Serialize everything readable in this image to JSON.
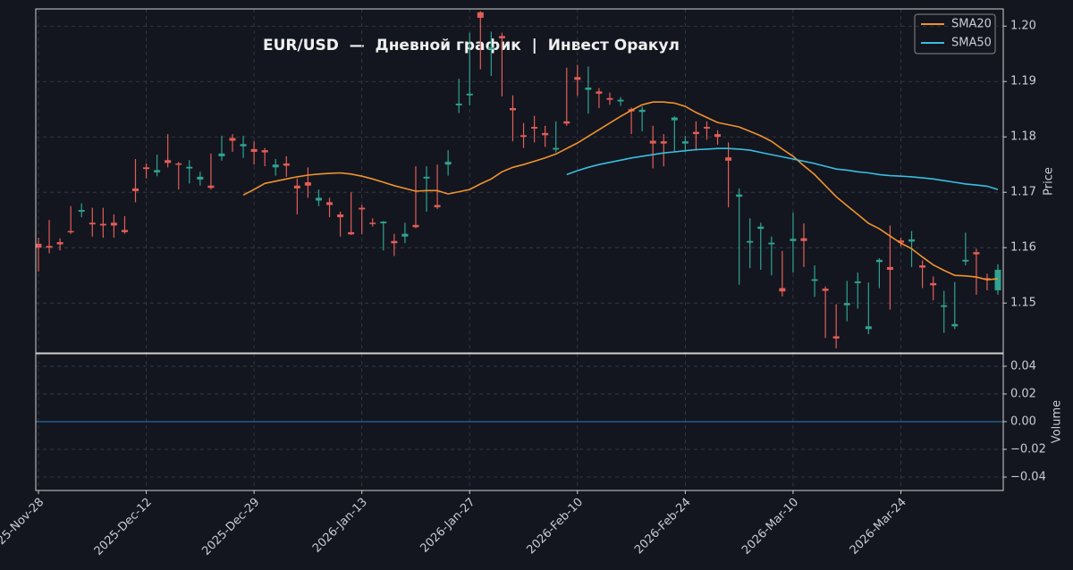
{
  "chart_data": [
    {
      "type": "candlestick",
      "title": "EUR/USD  —  Дневной график  |  Инвест Оракул",
      "y_label": "Price",
      "up_color": "#2fa391",
      "down_color": "#e35d57",
      "grid": true,
      "legend": "upper right",
      "ylim": [
        1.141,
        1.2031
      ],
      "yticks": [
        1.15,
        1.16,
        1.17,
        1.18,
        1.19,
        {
          "value": 1.2,
          "label": "1.20"
        }
      ],
      "categories": [
        "2025-Nov-28",
        null,
        null,
        null,
        null,
        null,
        null,
        null,
        null,
        null,
        "2025-Dec-12",
        null,
        null,
        null,
        null,
        null,
        null,
        null,
        null,
        null,
        "2025-Dec-29",
        null,
        null,
        null,
        null,
        null,
        null,
        null,
        null,
        null,
        "2026-Jan-13",
        null,
        null,
        null,
        null,
        null,
        null,
        null,
        null,
        null,
        "2026-Jan-27",
        null,
        null,
        null,
        null,
        null,
        null,
        null,
        null,
        null,
        "2026-Feb-10",
        null,
        null,
        null,
        null,
        null,
        null,
        null,
        null,
        null,
        "2026-Feb-24",
        null,
        null,
        null,
        null,
        null,
        null,
        null,
        null,
        null,
        "2026-Mar-10",
        null,
        null,
        null,
        null,
        null,
        null,
        null,
        null,
        null,
        "2026-Mar-24",
        null,
        null,
        null,
        null,
        null,
        null,
        null,
        null,
        null
      ],
      "open": [
        1.1607,
        1.1603,
        1.161,
        1.163,
        1.1665,
        1.1645,
        1.1643,
        1.1645,
        1.1632,
        1.1707,
        1.1745,
        1.1736,
        1.1758,
        1.1752,
        1.1743,
        1.1723,
        1.1712,
        1.1765,
        1.1798,
        1.1783,
        1.1778,
        1.1776,
        1.1745,
        1.1752,
        1.1712,
        1.1718,
        1.1685,
        1.1682,
        1.166,
        1.1628,
        1.1672,
        1.1645,
        1.1644,
        1.1612,
        1.162,
        1.1641,
        1.1725,
        1.1677,
        1.175,
        1.1857,
        1.1875,
        1.2025,
        1.1958,
        1.1982,
        1.1852,
        1.1803,
        1.1818,
        1.1807,
        1.1777,
        1.1828,
        1.1908,
        1.1885,
        1.1882,
        1.187,
        1.1864,
        1.185,
        1.1845,
        1.1793,
        1.1792,
        1.183,
        1.1788,
        1.1809,
        1.1818,
        1.1805,
        1.1763,
        1.1692,
        1.1609,
        1.1634,
        1.1606,
        1.1527,
        1.1612,
        1.1617,
        1.154,
        1.1526,
        1.144,
        1.1496,
        1.1536,
        1.1453,
        1.1574,
        1.1565,
        1.1613,
        1.1611,
        1.1568,
        1.1536,
        1.1493,
        1.1458,
        1.1575,
        1.1592,
        1.1545,
        1.1523
      ],
      "high": [
        1.1618,
        1.165,
        1.1617,
        1.1675,
        1.168,
        1.1672,
        1.1672,
        1.166,
        1.1657,
        1.176,
        1.1752,
        1.1768,
        1.1805,
        1.1755,
        1.1758,
        1.1737,
        1.177,
        1.1802,
        1.1805,
        1.1802,
        1.1792,
        1.178,
        1.176,
        1.1765,
        1.1725,
        1.1745,
        1.1705,
        1.169,
        1.1665,
        1.17,
        1.1677,
        1.1653,
        1.1648,
        1.1625,
        1.1645,
        1.1747,
        1.1747,
        1.175,
        1.1776,
        1.1905,
        1.1988,
        1.2027,
        1.199,
        1.1988,
        1.1875,
        1.1825,
        1.1838,
        1.182,
        1.1828,
        1.1925,
        1.193,
        1.1927,
        1.1888,
        1.188,
        1.1872,
        1.1853,
        1.1855,
        1.182,
        1.1805,
        1.1837,
        1.1802,
        1.1828,
        1.1828,
        1.1812,
        1.179,
        1.1707,
        1.1653,
        1.1645,
        1.162,
        1.1594,
        1.1663,
        1.1644,
        1.1568,
        1.153,
        1.1498,
        1.154,
        1.1555,
        1.1537,
        1.1581,
        1.164,
        1.1618,
        1.163,
        1.1577,
        1.1548,
        1.1522,
        1.1538,
        1.1627,
        1.1598,
        1.1553,
        1.157
      ],
      "low": [
        1.1557,
        1.159,
        1.1595,
        1.1625,
        1.1655,
        1.162,
        1.1618,
        1.1618,
        1.1625,
        1.1682,
        1.1725,
        1.1729,
        1.1745,
        1.1705,
        1.1716,
        1.1712,
        1.1705,
        1.1757,
        1.1773,
        1.1762,
        1.175,
        1.1747,
        1.173,
        1.1728,
        1.166,
        1.169,
        1.1675,
        1.1655,
        1.162,
        1.1623,
        1.1624,
        1.1638,
        1.1595,
        1.1585,
        1.1608,
        1.1635,
        1.1665,
        1.167,
        1.173,
        1.1843,
        1.1857,
        1.1922,
        1.191,
        1.1873,
        1.1792,
        1.178,
        1.179,
        1.1782,
        1.1772,
        1.182,
        1.1874,
        1.1842,
        1.1852,
        1.1858,
        1.1856,
        1.1805,
        1.181,
        1.1743,
        1.1747,
        1.1773,
        1.1773,
        1.1775,
        1.1795,
        1.1786,
        1.1673,
        1.1533,
        1.1563,
        1.156,
        1.155,
        1.1512,
        1.1555,
        1.1565,
        1.1511,
        1.1437,
        1.1418,
        1.1467,
        1.149,
        1.1444,
        1.1527,
        1.1488,
        1.1602,
        1.1565,
        1.1527,
        1.1505,
        1.1446,
        1.1453,
        1.1568,
        1.1515,
        1.1523,
        1.1515
      ],
      "close": [
        1.16,
        1.16,
        1.1606,
        1.1628,
        1.1668,
        1.1642,
        1.164,
        1.164,
        1.1628,
        1.1702,
        1.1742,
        1.174,
        1.1753,
        1.175,
        1.1746,
        1.1728,
        1.1708,
        1.177,
        1.1793,
        1.1787,
        1.1773,
        1.1772,
        1.175,
        1.1748,
        1.1707,
        1.1712,
        1.169,
        1.1677,
        1.1655,
        1.1624,
        1.1669,
        1.1643,
        1.1647,
        1.1608,
        1.1625,
        1.1637,
        1.1728,
        1.1673,
        1.1755,
        1.186,
        1.1878,
        1.2015,
        1.1962,
        1.1978,
        1.1848,
        1.18,
        1.1815,
        1.1803,
        1.178,
        1.1824,
        1.1903,
        1.1889,
        1.1878,
        1.1867,
        1.1867,
        1.1846,
        1.1849,
        1.1788,
        1.1788,
        1.1835,
        1.1792,
        1.1805,
        1.1815,
        1.18,
        1.1757,
        1.1696,
        1.1612,
        1.1638,
        1.1609,
        1.1521,
        1.1616,
        1.1612,
        1.1543,
        1.1522,
        1.1436,
        1.15,
        1.1539,
        1.1458,
        1.1578,
        1.156,
        1.1609,
        1.1615,
        1.1564,
        1.1532,
        1.1496,
        1.1462,
        1.1578,
        1.1588,
        1.1542,
        1.156
      ],
      "series": [
        {
          "name": "SMA20",
          "color": "#f0922e",
          "values": [
            null,
            null,
            null,
            null,
            null,
            null,
            null,
            null,
            null,
            null,
            null,
            null,
            null,
            null,
            null,
            null,
            null,
            null,
            null,
            1.1695,
            1.1705,
            1.1716,
            1.172,
            1.1724,
            1.1728,
            1.1731,
            1.1733,
            1.1734,
            1.1735,
            1.1733,
            1.1729,
            1.1724,
            1.1718,
            1.1712,
            1.1707,
            1.1702,
            1.1703,
            1.1703,
            1.1697,
            1.1701,
            1.1705,
            1.1715,
            1.1724,
            1.1737,
            1.1745,
            1.175,
            1.1756,
            1.1762,
            1.1769,
            1.1779,
            1.1789,
            1.1801,
            1.1813,
            1.1825,
            1.1837,
            1.1848,
            1.1858,
            1.1863,
            1.1863,
            1.1861,
            1.1855,
            1.1844,
            1.1835,
            1.1826,
            1.1822,
            1.1818,
            1.181,
            1.1802,
            1.1792,
            1.1778,
            1.1765,
            1.1748,
            1.1732,
            1.1712,
            1.1692,
            1.1676,
            1.166,
            1.1644,
            1.1634,
            1.1621,
            1.1608,
            1.1598,
            1.1583,
            1.1569,
            1.1559,
            1.155,
            1.1549,
            1.1547,
            1.1542,
            1.1544
          ]
        },
        {
          "name": "SMA50",
          "color": "#3bbde0",
          "values": [
            null,
            null,
            null,
            null,
            null,
            null,
            null,
            null,
            null,
            null,
            null,
            null,
            null,
            null,
            null,
            null,
            null,
            null,
            null,
            null,
            null,
            null,
            null,
            null,
            null,
            null,
            null,
            null,
            null,
            null,
            null,
            null,
            null,
            null,
            null,
            null,
            null,
            null,
            null,
            null,
            null,
            null,
            null,
            null,
            null,
            null,
            null,
            null,
            null,
            1.1732,
            1.1739,
            1.1745,
            1.175,
            1.1754,
            1.1758,
            1.1762,
            1.1765,
            1.1768,
            1.1771,
            1.1773,
            1.1775,
            1.1777,
            1.1778,
            1.1779,
            1.1779,
            1.1778,
            1.1776,
            1.1772,
            1.1768,
            1.1764,
            1.176,
            1.1756,
            1.1752,
            1.1747,
            1.1742,
            1.174,
            1.1737,
            1.1735,
            1.1732,
            1.173,
            1.1729,
            1.1728,
            1.1726,
            1.1724,
            1.1721,
            1.1718,
            1.1715,
            1.1713,
            1.1711,
            1.1705
          ]
        }
      ]
    },
    {
      "type": "line",
      "y_label": "Volume",
      "color": "#2f7fbf",
      "grid": true,
      "ylim": [
        -0.0497,
        0.049
      ],
      "yticks": [
        {
          "value": -0.04,
          "label": "−0.04"
        },
        {
          "value": -0.02,
          "label": "−0.02"
        },
        {
          "value": 0,
          "label": "0.00"
        },
        0.02,
        0.04
      ],
      "values": [
        0,
        0,
        0,
        0,
        0,
        0,
        0,
        0,
        0,
        0,
        0,
        0,
        0,
        0,
        0,
        0,
        0,
        0,
        0,
        0,
        0,
        0,
        0,
        0,
        0,
        0,
        0,
        0,
        0,
        0,
        0,
        0,
        0,
        0,
        0,
        0,
        0,
        0,
        0,
        0,
        0,
        0,
        0,
        0,
        0,
        0,
        0,
        0,
        0,
        0,
        0,
        0,
        0,
        0,
        0,
        0,
        0,
        0,
        0,
        0,
        0,
        0,
        0,
        0,
        0,
        0,
        0,
        0,
        0,
        0,
        0,
        0,
        0,
        0,
        0,
        0,
        0,
        0,
        0,
        0,
        0,
        0,
        0,
        0,
        0,
        0,
        0,
        0,
        0,
        0
      ]
    }
  ]
}
